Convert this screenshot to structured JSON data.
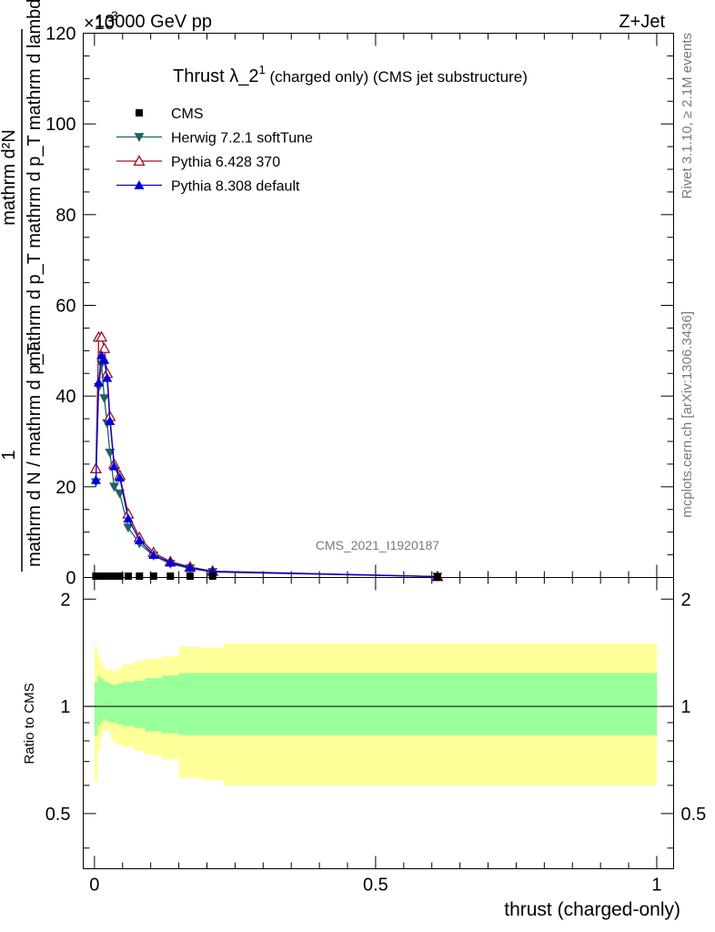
{
  "header": {
    "left": "13000 GeV pp",
    "right": "Z+Jet",
    "exponent": "×10",
    "exponent_power": "3"
  },
  "side_labels": {
    "rivet": "Rivet 3.1.10, ≥ 2.1M events",
    "mcplots": "mcplots.cern.ch [arXiv:1306.3436]"
  },
  "watermark": "CMS_2021_I1920187",
  "chart_data": [
    {
      "type": "line",
      "title": "Thrust λ_2",
      "title_sup": "1",
      "subtitle": " (charged only) (CMS jet substructure)",
      "ylabel_top": "mathrm d²N",
      "ylabel_bottom": "mathrm d p_T mathrm d p_T mathrm d lambda",
      "ylabel_one": "1",
      "ylabel_den": "mathrm d N / mathrm d p_T",
      "xlim": [
        -0.02,
        1.03
      ],
      "ylim": [
        0,
        120
      ],
      "yticks": [
        0,
        20,
        40,
        60,
        80,
        100,
        120
      ],
      "ytick_labels": [
        "0",
        "20",
        "40",
        "60",
        "80",
        "100",
        "120"
      ],
      "legend_position": "top-left",
      "series": [
        {
          "name": "CMS",
          "color": "#000000",
          "marker": "square",
          "x": [
            0.0025,
            0.0075,
            0.0125,
            0.0175,
            0.0225,
            0.0275,
            0.035,
            0.045,
            0.06,
            0.08,
            0.105,
            0.135,
            0.17,
            0.21,
            0.61
          ],
          "y": [
            0.3,
            0.3,
            0.3,
            0.3,
            0.3,
            0.3,
            0.3,
            0.3,
            0.3,
            0.3,
            0.3,
            0.3,
            0.3,
            0.3,
            0.1
          ]
        },
        {
          "name": "Herwig 7.2.1 softTune",
          "color": "#1f6262",
          "marker": "triangle-down",
          "x": [
            0.0025,
            0.0075,
            0.0125,
            0.0175,
            0.0225,
            0.0275,
            0.035,
            0.045,
            0.06,
            0.08,
            0.105,
            0.135,
            0.17,
            0.21,
            0.61
          ],
          "y": [
            21,
            42,
            47,
            39.5,
            34,
            27.5,
            20,
            18.5,
            11,
            7.5,
            4.8,
            3.0,
            2.0,
            1.2,
            0.2
          ]
        },
        {
          "name": "Pythia 6.428 370",
          "color": "#a01020",
          "marker": "triangle-up-open",
          "x": [
            0.0025,
            0.0075,
            0.0125,
            0.0175,
            0.0225,
            0.0275,
            0.035,
            0.045,
            0.06,
            0.08,
            0.105,
            0.135,
            0.17,
            0.21,
            0.61
          ],
          "y": [
            24,
            53,
            53,
            50.5,
            45,
            35.5,
            25,
            22.5,
            14,
            8.8,
            5.5,
            3.5,
            2.3,
            1.4,
            0.2
          ]
        },
        {
          "name": "Pythia 8.308 default",
          "color": "#0000e0",
          "marker": "triangle-up",
          "x": [
            0.0025,
            0.0075,
            0.0125,
            0.0175,
            0.0225,
            0.0275,
            0.035,
            0.045,
            0.06,
            0.08,
            0.105,
            0.135,
            0.17,
            0.21,
            0.61
          ],
          "y": [
            21.5,
            43,
            49,
            48,
            44,
            34.5,
            24.5,
            22,
            13,
            8.2,
            5.0,
            3.3,
            2.1,
            1.3,
            0.2
          ]
        }
      ]
    },
    {
      "type": "area",
      "ylabel": "Ratio to CMS",
      "xlabel": "thrust (charged-only)",
      "xlim": [
        -0.02,
        1.03
      ],
      "ylim": [
        0.35,
        2.3
      ],
      "yticks": [
        0.5,
        1,
        2
      ],
      "ytick_labels": [
        "0.5",
        "1",
        "2"
      ],
      "xticks": [
        0,
        0.5,
        1
      ],
      "xtick_labels": [
        "0",
        "0.5",
        "1"
      ],
      "reference_line": 1,
      "bands": {
        "edges": [
          0,
          0.005,
          0.01,
          0.015,
          0.02,
          0.025,
          0.03,
          0.04,
          0.05,
          0.07,
          0.09,
          0.12,
          0.15,
          0.19,
          0.23,
          1.0
        ],
        "green_low": [
          0.83,
          0.88,
          0.9,
          0.92,
          0.91,
          0.9,
          0.9,
          0.89,
          0.88,
          0.87,
          0.85,
          0.84,
          0.83,
          0.83,
          0.83
        ],
        "green_high": [
          1.17,
          1.22,
          1.2,
          1.18,
          1.17,
          1.16,
          1.15,
          1.16,
          1.17,
          1.18,
          1.2,
          1.22,
          1.24,
          1.24,
          1.24
        ],
        "yellow_low": [
          0.62,
          0.75,
          0.82,
          0.86,
          0.86,
          0.84,
          0.8,
          0.78,
          0.77,
          0.75,
          0.73,
          0.71,
          0.63,
          0.62,
          0.6
        ],
        "yellow_high": [
          1.48,
          1.38,
          1.33,
          1.28,
          1.27,
          1.27,
          1.26,
          1.28,
          1.31,
          1.34,
          1.36,
          1.38,
          1.47,
          1.46,
          1.5
        ],
        "green_color": "#99ff99",
        "yellow_color": "#ffff99"
      }
    }
  ]
}
